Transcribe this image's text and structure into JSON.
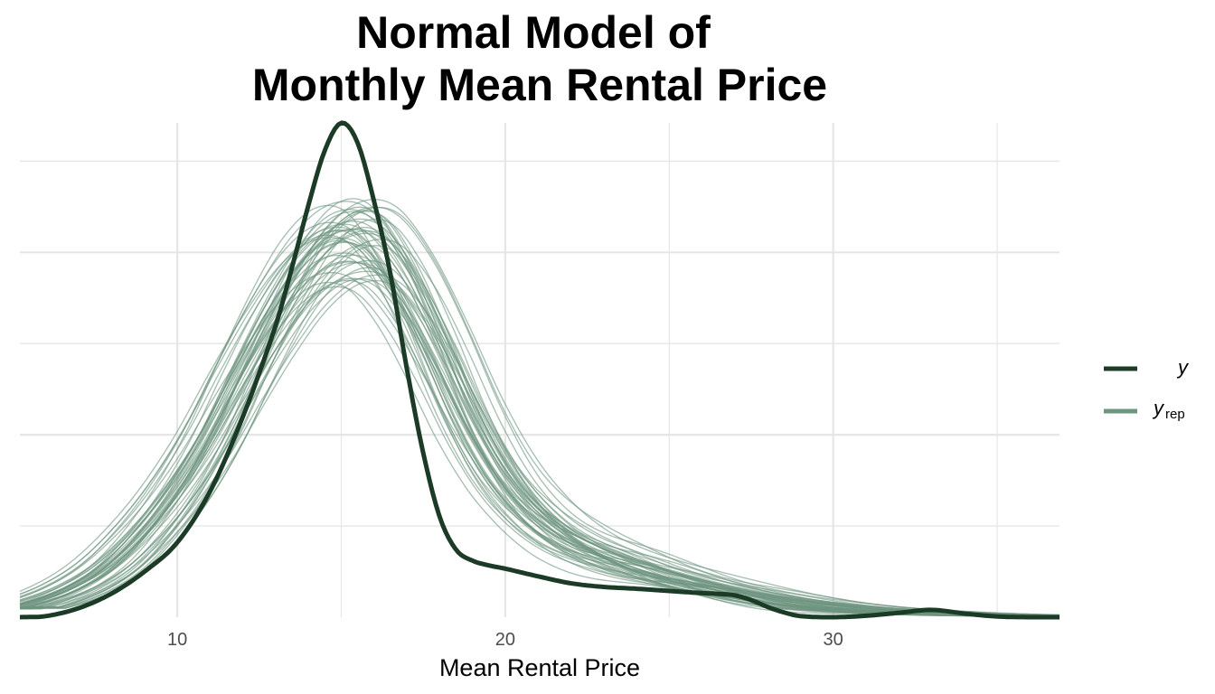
{
  "chart_data": {
    "type": "line",
    "title_lines": [
      "Normal Model of",
      "Monthly Mean Rental Price"
    ],
    "xlabel": "Mean Rental Price",
    "ylabel": "",
    "xlim": [
      5.2,
      36.9
    ],
    "ylim": [
      0,
      0.1355
    ],
    "x_ticks": [
      10,
      20,
      30
    ],
    "x_tick_labels": [
      "10",
      "20",
      "30"
    ],
    "y_gridlines": [
      0.025,
      0.05,
      0.075,
      0.1,
      0.125
    ],
    "y_tick_labels_shown": false,
    "grid": true,
    "legend": {
      "placement": "right",
      "entries": [
        {
          "label": "y",
          "subscript": "",
          "color": "#1b3b27"
        },
        {
          "label": "y",
          "subscript": "rep",
          "color": "#6e9580"
        }
      ]
    },
    "colors": {
      "y": "#1b3b27",
      "yrep": "#6e9580",
      "grid": "#e6e6e6"
    },
    "series": [
      {
        "name": "y",
        "x": [
          5.2,
          6,
          7,
          8,
          9,
          10,
          11,
          12,
          13,
          13.5,
          14,
          14.5,
          15,
          15.5,
          16,
          16.5,
          17,
          17.5,
          18,
          18.5,
          19,
          19.5,
          20,
          21,
          22,
          23,
          24,
          25,
          26,
          26.5,
          27,
          27.5,
          28,
          28.5,
          29,
          30,
          31,
          32,
          33,
          34,
          35,
          36,
          36.9
        ],
        "values": [
          0,
          0.0003,
          0.0025,
          0.0065,
          0.0125,
          0.0205,
          0.0345,
          0.055,
          0.08,
          0.096,
          0.113,
          0.128,
          0.1355,
          0.13,
          0.114,
          0.094,
          0.068,
          0.045,
          0.0275,
          0.0185,
          0.0155,
          0.0142,
          0.0133,
          0.0112,
          0.0093,
          0.0083,
          0.0078,
          0.0072,
          0.0066,
          0.0064,
          0.006,
          0.0047,
          0.0028,
          0.0013,
          0.0003,
          0,
          0.0004,
          0.0012,
          0.002,
          0.001,
          0.0002,
          0,
          0
        ]
      },
      {
        "name": "y_rep",
        "description_kind": "50 posterior predictive density draws",
        "x": [
          5.2,
          6,
          7,
          8,
          9,
          10,
          11,
          12,
          13,
          14,
          15,
          16,
          17,
          18,
          19,
          20,
          21,
          22,
          23,
          24,
          25,
          26,
          27,
          28,
          29,
          30,
          31,
          32,
          33,
          34,
          35,
          36,
          36.9
        ],
        "values": [
          0.0025,
          0.0045,
          0.008,
          0.0135,
          0.022,
          0.033,
          0.047,
          0.064,
          0.08,
          0.093,
          0.1,
          0.099,
          0.088,
          0.071,
          0.052,
          0.037,
          0.027,
          0.0205,
          0.0165,
          0.0135,
          0.011,
          0.0088,
          0.0068,
          0.005,
          0.0036,
          0.0026,
          0.0019,
          0.0014,
          0.001,
          0.0007,
          0.0005,
          0.0004,
          0.0003
        ]
      }
    ]
  }
}
